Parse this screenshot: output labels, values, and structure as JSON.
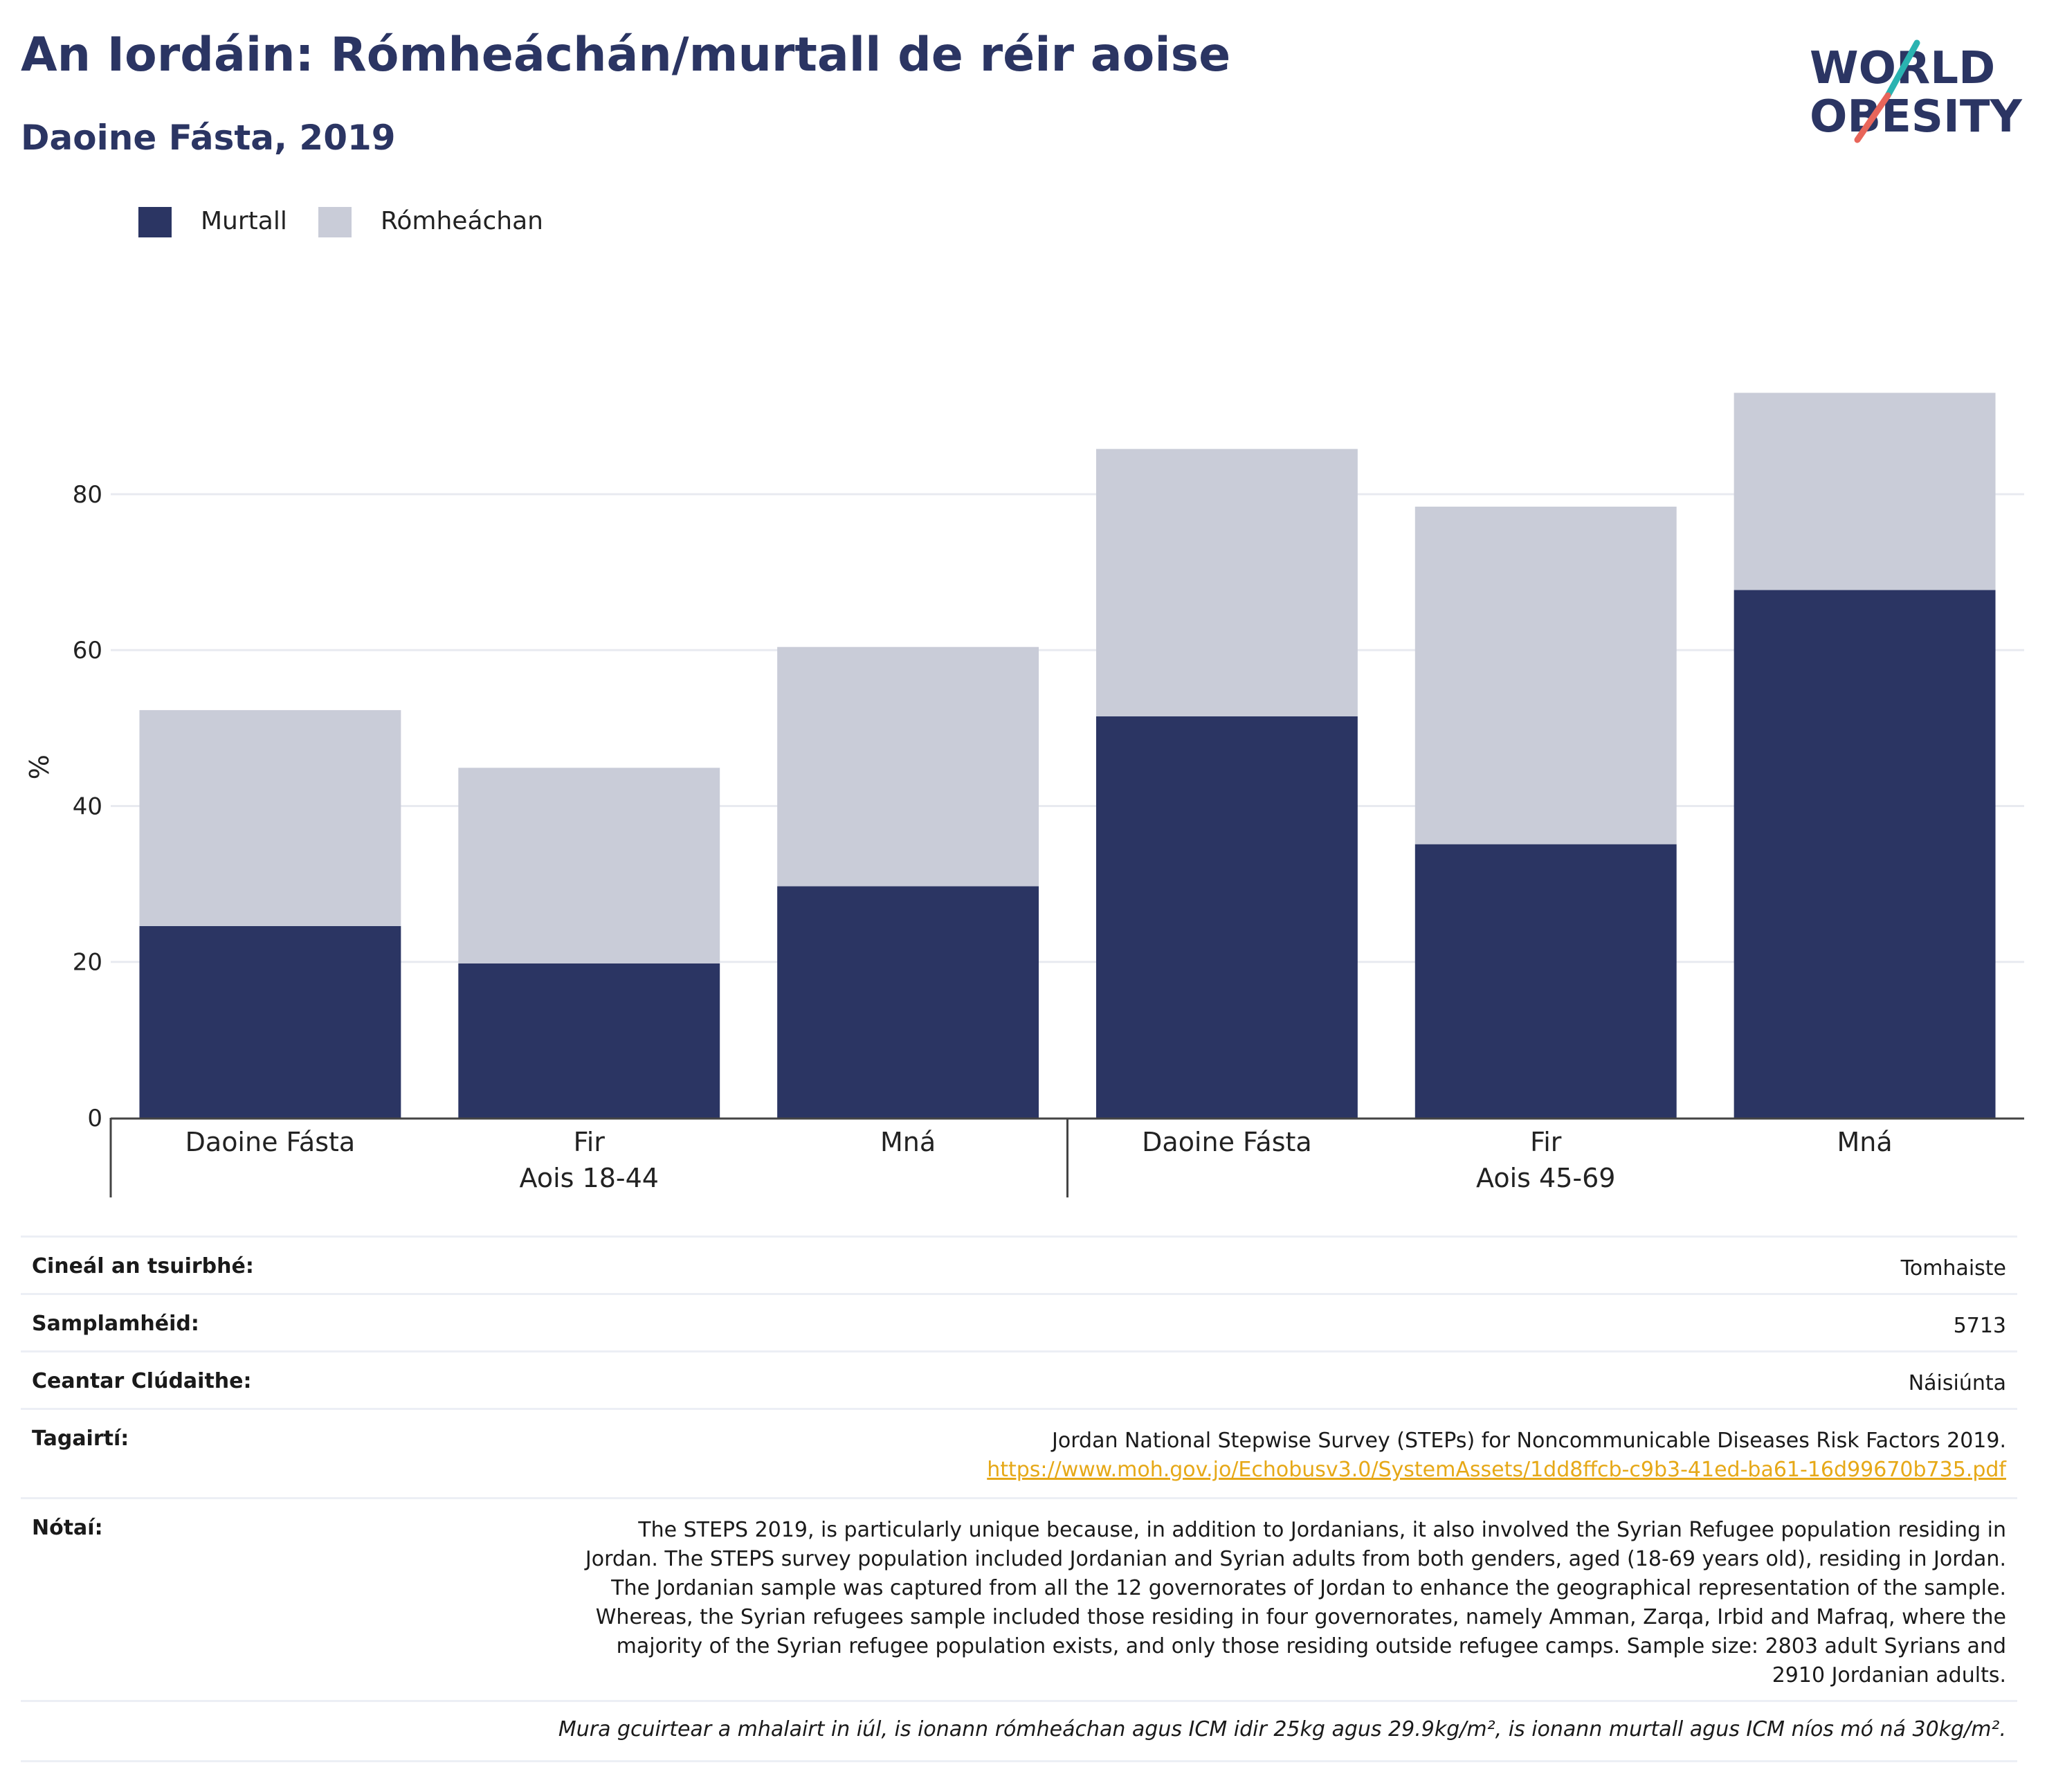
{
  "header": {
    "title": "An Iordáin: Rómheáchán/murtall de réir aoise",
    "subtitle": "Daoine Fásta, 2019",
    "logo_line1": "WORLD",
    "logo_line2": "OBESITY"
  },
  "colors": {
    "obesity": "#2b3563",
    "overweight": "#c9ccd8",
    "title": "#2b3563",
    "link": "#e6a817",
    "logo_teal": "#2ab3b1",
    "logo_coral": "#e8655a"
  },
  "legend": [
    {
      "label": "Murtall",
      "color": "#2b3563"
    },
    {
      "label": "Rómheáchan",
      "color": "#c9ccd8"
    }
  ],
  "chart_data": {
    "type": "bar",
    "stacked": true,
    "ylabel": "%",
    "ylim": [
      0,
      95
    ],
    "yticks": [
      0,
      20,
      40,
      60,
      80
    ],
    "grid": true,
    "legend_position": "top-left",
    "categories": [
      "Daoine Fásta",
      "Fir",
      "Mná",
      "Daoine Fásta",
      "Fir",
      "Mná"
    ],
    "groups": [
      {
        "label": "Aois 18-44",
        "span": [
          0,
          2
        ]
      },
      {
        "label": "Aois 45-69",
        "span": [
          3,
          5
        ]
      }
    ],
    "series": [
      {
        "name": "Murtall",
        "values": [
          24.6,
          19.8,
          29.7,
          51.5,
          35.1,
          67.7
        ]
      },
      {
        "name": "Rómheáchan",
        "values": [
          27.7,
          25.1,
          30.7,
          34.3,
          43.3,
          25.3
        ]
      }
    ]
  },
  "info": {
    "survey_type_label": "Cineál an tsuirbhé:",
    "survey_type_value": "Tomhaiste",
    "sample_label": "Samplamhéid:",
    "sample_value": "5713",
    "area_label": "Ceantar Clúdaithe:",
    "area_value": "Náisiúnta",
    "refs_label": "Tagairtí:",
    "refs_text": "Jordan National Stepwise Survey (STEPs) for Noncommunicable Diseases Risk Factors 2019.",
    "refs_link": "https://www.moh.gov.jo/Echobusv3.0/SystemAssets/1dd8ffcb-c9b3-41ed-ba61-16d99670b735.pdf",
    "notes_label": "Nótaí:",
    "notes_text": "The STEPS 2019, is particularly unique because, in addition to Jordanians, it also involved the Syrian Refugee population residing in Jordan. The STEPS survey population included Jordanian and Syrian adults from both genders, aged (18-69 years old), residing in Jordan. The Jordanian sample was captured from all the 12 governorates of Jordan to enhance the geographical representation of the sample. Whereas, the Syrian refugees sample included those residing in four governorates, namely Amman, Zarqa, Irbid and Mafraq, where the majority of the Syrian refugee population exists, and only those residing outside refugee camps. Sample size: 2803 adult Syrians and 2910 Jordanian adults.",
    "footnote": "Mura gcuirtear a mhalairt in iúl, is ionann rómheáchan agus ICM idir 25kg agus 29.9kg/m², is ionann murtall agus ICM níos mó ná 30kg/m²."
  }
}
